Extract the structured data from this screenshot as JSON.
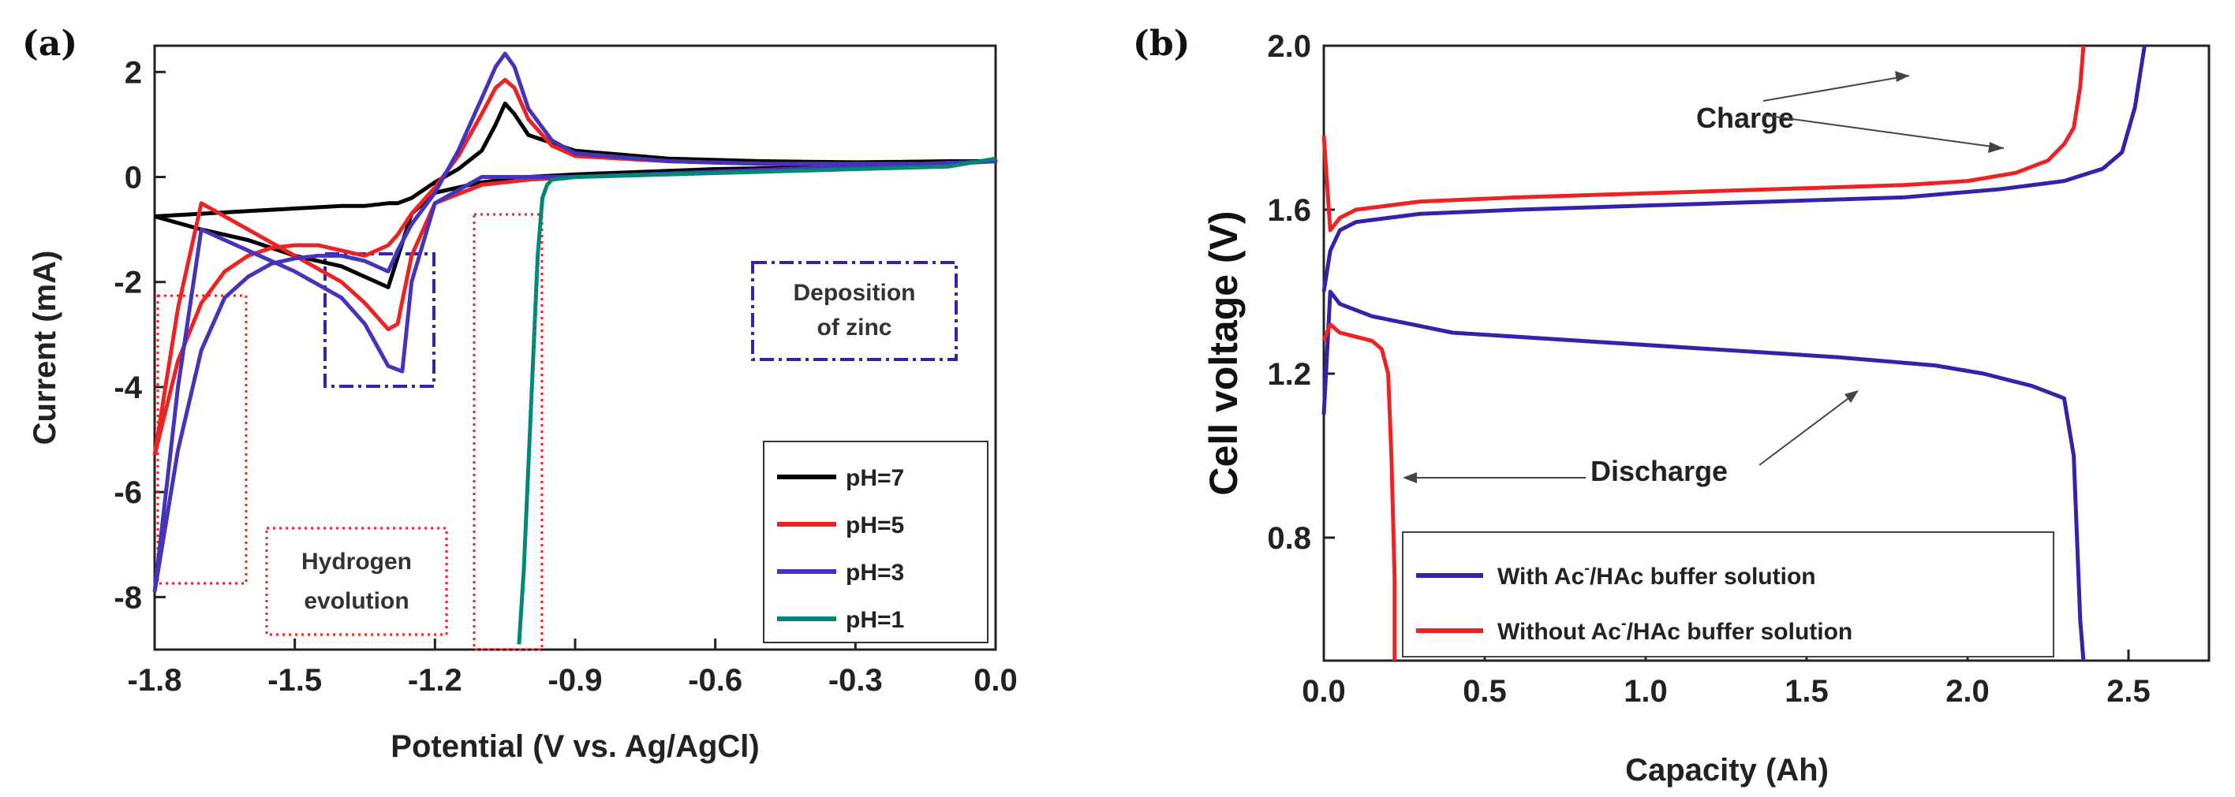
{
  "chart_data": [
    {
      "panel": "(a)",
      "type": "line",
      "xlabel": "Potential (V vs. Ag/AgCl)",
      "ylabel": "Current (mA)",
      "xlim": [
        -1.8,
        0.0
      ],
      "ylim": [
        -9,
        2.5
      ],
      "xticks": [
        "-1.8",
        "-1.5",
        "-1.2",
        "-0.9",
        "-0.6",
        "-0.3",
        "0.0"
      ],
      "yticks": [
        "2",
        "0",
        "-2",
        "-4",
        "-6",
        "-8"
      ],
      "series": [
        {
          "name": "pH=7",
          "color": "#000000",
          "x": [
            -1.8,
            -1.7,
            -1.6,
            -1.5,
            -1.4,
            -1.35,
            -1.3,
            -1.28,
            -1.25,
            -1.2,
            -1.15,
            -1.1,
            -1.07,
            -1.05,
            -1.03,
            -1.0,
            -0.9,
            -0.7,
            -0.5,
            -0.3,
            -0.1,
            0.0,
            -0.3,
            -0.6,
            -0.9,
            -1.0,
            -1.1,
            -1.2,
            -1.25,
            -1.3,
            -1.4,
            -1.5,
            -1.6,
            -1.7,
            -1.8
          ],
          "y": [
            -0.75,
            -0.7,
            -0.65,
            -0.6,
            -0.55,
            -0.55,
            -0.5,
            -0.5,
            -0.4,
            -0.1,
            0.15,
            0.5,
            1.0,
            1.4,
            1.2,
            0.8,
            0.5,
            0.35,
            0.3,
            0.28,
            0.3,
            0.3,
            0.2,
            0.15,
            0.05,
            0.0,
            -0.1,
            -0.3,
            -0.7,
            -2.1,
            -1.7,
            -1.5,
            -1.2,
            -1.0,
            -0.75
          ]
        },
        {
          "name": "pH=5",
          "color": "#ee2222",
          "x": [
            -1.8,
            -1.75,
            -1.7,
            -1.65,
            -1.6,
            -1.55,
            -1.5,
            -1.45,
            -1.4,
            -1.35,
            -1.3,
            -1.28,
            -1.25,
            -1.2,
            -1.15,
            -1.1,
            -1.07,
            -1.05,
            -1.03,
            -1.0,
            -0.95,
            -0.9,
            -0.7,
            -0.5,
            -0.3,
            -0.1,
            0.0,
            -0.3,
            -0.6,
            -0.9,
            -1.0,
            -1.1,
            -1.2,
            -1.25,
            -1.28,
            -1.3,
            -1.35,
            -1.4,
            -1.5,
            -1.6,
            -1.7,
            -1.75,
            -1.8
          ],
          "y": [
            -5.3,
            -3.5,
            -2.4,
            -1.8,
            -1.5,
            -1.35,
            -1.3,
            -1.3,
            -1.4,
            -1.5,
            -1.3,
            -1.1,
            -0.7,
            -0.2,
            0.4,
            1.2,
            1.7,
            1.85,
            1.7,
            1.1,
            0.6,
            0.4,
            0.3,
            0.25,
            0.25,
            0.25,
            0.3,
            0.2,
            0.1,
            0.0,
            -0.05,
            -0.15,
            -0.5,
            -1.5,
            -2.8,
            -2.9,
            -2.4,
            -2.0,
            -1.5,
            -1.0,
            -0.5,
            -2.5,
            -5.3
          ]
        },
        {
          "name": "pH=3",
          "color": "#4433bb",
          "x": [
            -1.8,
            -1.75,
            -1.7,
            -1.65,
            -1.6,
            -1.55,
            -1.5,
            -1.45,
            -1.4,
            -1.35,
            -1.3,
            -1.28,
            -1.25,
            -1.2,
            -1.15,
            -1.1,
            -1.07,
            -1.05,
            -1.03,
            -1.0,
            -0.95,
            -0.9,
            -0.7,
            -0.5,
            -0.3,
            -0.1,
            0.0,
            -0.3,
            -0.6,
            -0.9,
            -1.0,
            -1.1,
            -1.2,
            -1.25,
            -1.27,
            -1.3,
            -1.35,
            -1.4,
            -1.5,
            -1.6,
            -1.7,
            -1.75,
            -1.8
          ],
          "y": [
            -7.9,
            -5.2,
            -3.3,
            -2.3,
            -1.9,
            -1.65,
            -1.55,
            -1.5,
            -1.5,
            -1.6,
            -1.8,
            -1.4,
            -0.9,
            -0.3,
            0.5,
            1.5,
            2.1,
            2.35,
            2.1,
            1.3,
            0.7,
            0.45,
            0.3,
            0.25,
            0.25,
            0.25,
            0.3,
            0.2,
            0.1,
            0.0,
            0.0,
            0.0,
            -0.5,
            -2.0,
            -3.7,
            -3.6,
            -2.8,
            -2.3,
            -1.8,
            -1.4,
            -1.0,
            -4.0,
            -7.9
          ]
        },
        {
          "name": "pH=1",
          "color": "#008877",
          "x": [
            -1.02,
            -1.01,
            -1.0,
            -0.99,
            -0.98,
            -0.97,
            -0.96,
            -0.95,
            -0.9,
            -0.7,
            -0.5,
            -0.3,
            -0.1,
            0.0
          ],
          "y": [
            -8.9,
            -7.5,
            -5.5,
            -3.5,
            -1.5,
            -0.4,
            -0.15,
            -0.05,
            0.0,
            0.05,
            0.1,
            0.15,
            0.2,
            0.35
          ]
        }
      ],
      "annotations": [
        {
          "text": "Hydrogen",
          "text2": "evolution"
        },
        {
          "text": "Deposition",
          "text2": "of zinc"
        }
      ]
    },
    {
      "panel": "(b)",
      "type": "line",
      "xlabel": "Capacity (Ah)",
      "ylabel": "Cell voltage (V)",
      "xlim": [
        0.0,
        2.75
      ],
      "ylim": [
        0.5,
        2.0
      ],
      "xticks": [
        "0.0",
        "0.5",
        "1.0",
        "1.5",
        "2.0",
        "2.5"
      ],
      "yticks": [
        "2.0",
        "1.6",
        "1.2",
        "0.8"
      ],
      "series": [
        {
          "name": "With Ac",
          "name2": "/HAc buffer solution",
          "color": "#3322aa",
          "charge": {
            "x": [
              0.0,
              0.02,
              0.05,
              0.1,
              0.3,
              0.6,
              1.0,
              1.4,
              1.8,
              2.1,
              2.3,
              2.42,
              2.48,
              2.52,
              2.55
            ],
            "y": [
              1.4,
              1.5,
              1.55,
              1.57,
              1.59,
              1.6,
              1.61,
              1.62,
              1.63,
              1.65,
              1.67,
              1.7,
              1.74,
              1.85,
              2.0
            ]
          },
          "discharge": {
            "x": [
              0.0,
              0.02,
              0.05,
              0.15,
              0.4,
              0.8,
              1.2,
              1.6,
              1.9,
              2.05,
              2.2,
              2.3,
              2.33,
              2.34,
              2.35,
              2.36
            ],
            "y": [
              1.1,
              1.4,
              1.37,
              1.34,
              1.3,
              1.28,
              1.26,
              1.24,
              1.22,
              1.2,
              1.17,
              1.14,
              1.0,
              0.8,
              0.6,
              0.5
            ]
          }
        },
        {
          "name": "Without Ac",
          "name2": "/HAc buffer solution",
          "color": "#ee2222",
          "charge": {
            "x": [
              0.0,
              0.02,
              0.05,
              0.1,
              0.3,
              0.6,
              1.0,
              1.4,
              1.8,
              2.0,
              2.15,
              2.25,
              2.3,
              2.33,
              2.35,
              2.36
            ],
            "y": [
              1.78,
              1.55,
              1.58,
              1.6,
              1.62,
              1.63,
              1.64,
              1.65,
              1.66,
              1.67,
              1.69,
              1.72,
              1.76,
              1.8,
              1.9,
              2.0
            ]
          },
          "discharge": {
            "x": [
              0.0,
              0.02,
              0.05,
              0.1,
              0.15,
              0.18,
              0.2,
              0.21,
              0.22,
              0.22
            ],
            "y": [
              1.28,
              1.32,
              1.3,
              1.29,
              1.28,
              1.26,
              1.2,
              1.0,
              0.7,
              0.5
            ]
          }
        }
      ],
      "annotations": [
        {
          "text": "Charge"
        },
        {
          "text": "Discharge"
        }
      ],
      "legend_superscript": "-"
    }
  ]
}
